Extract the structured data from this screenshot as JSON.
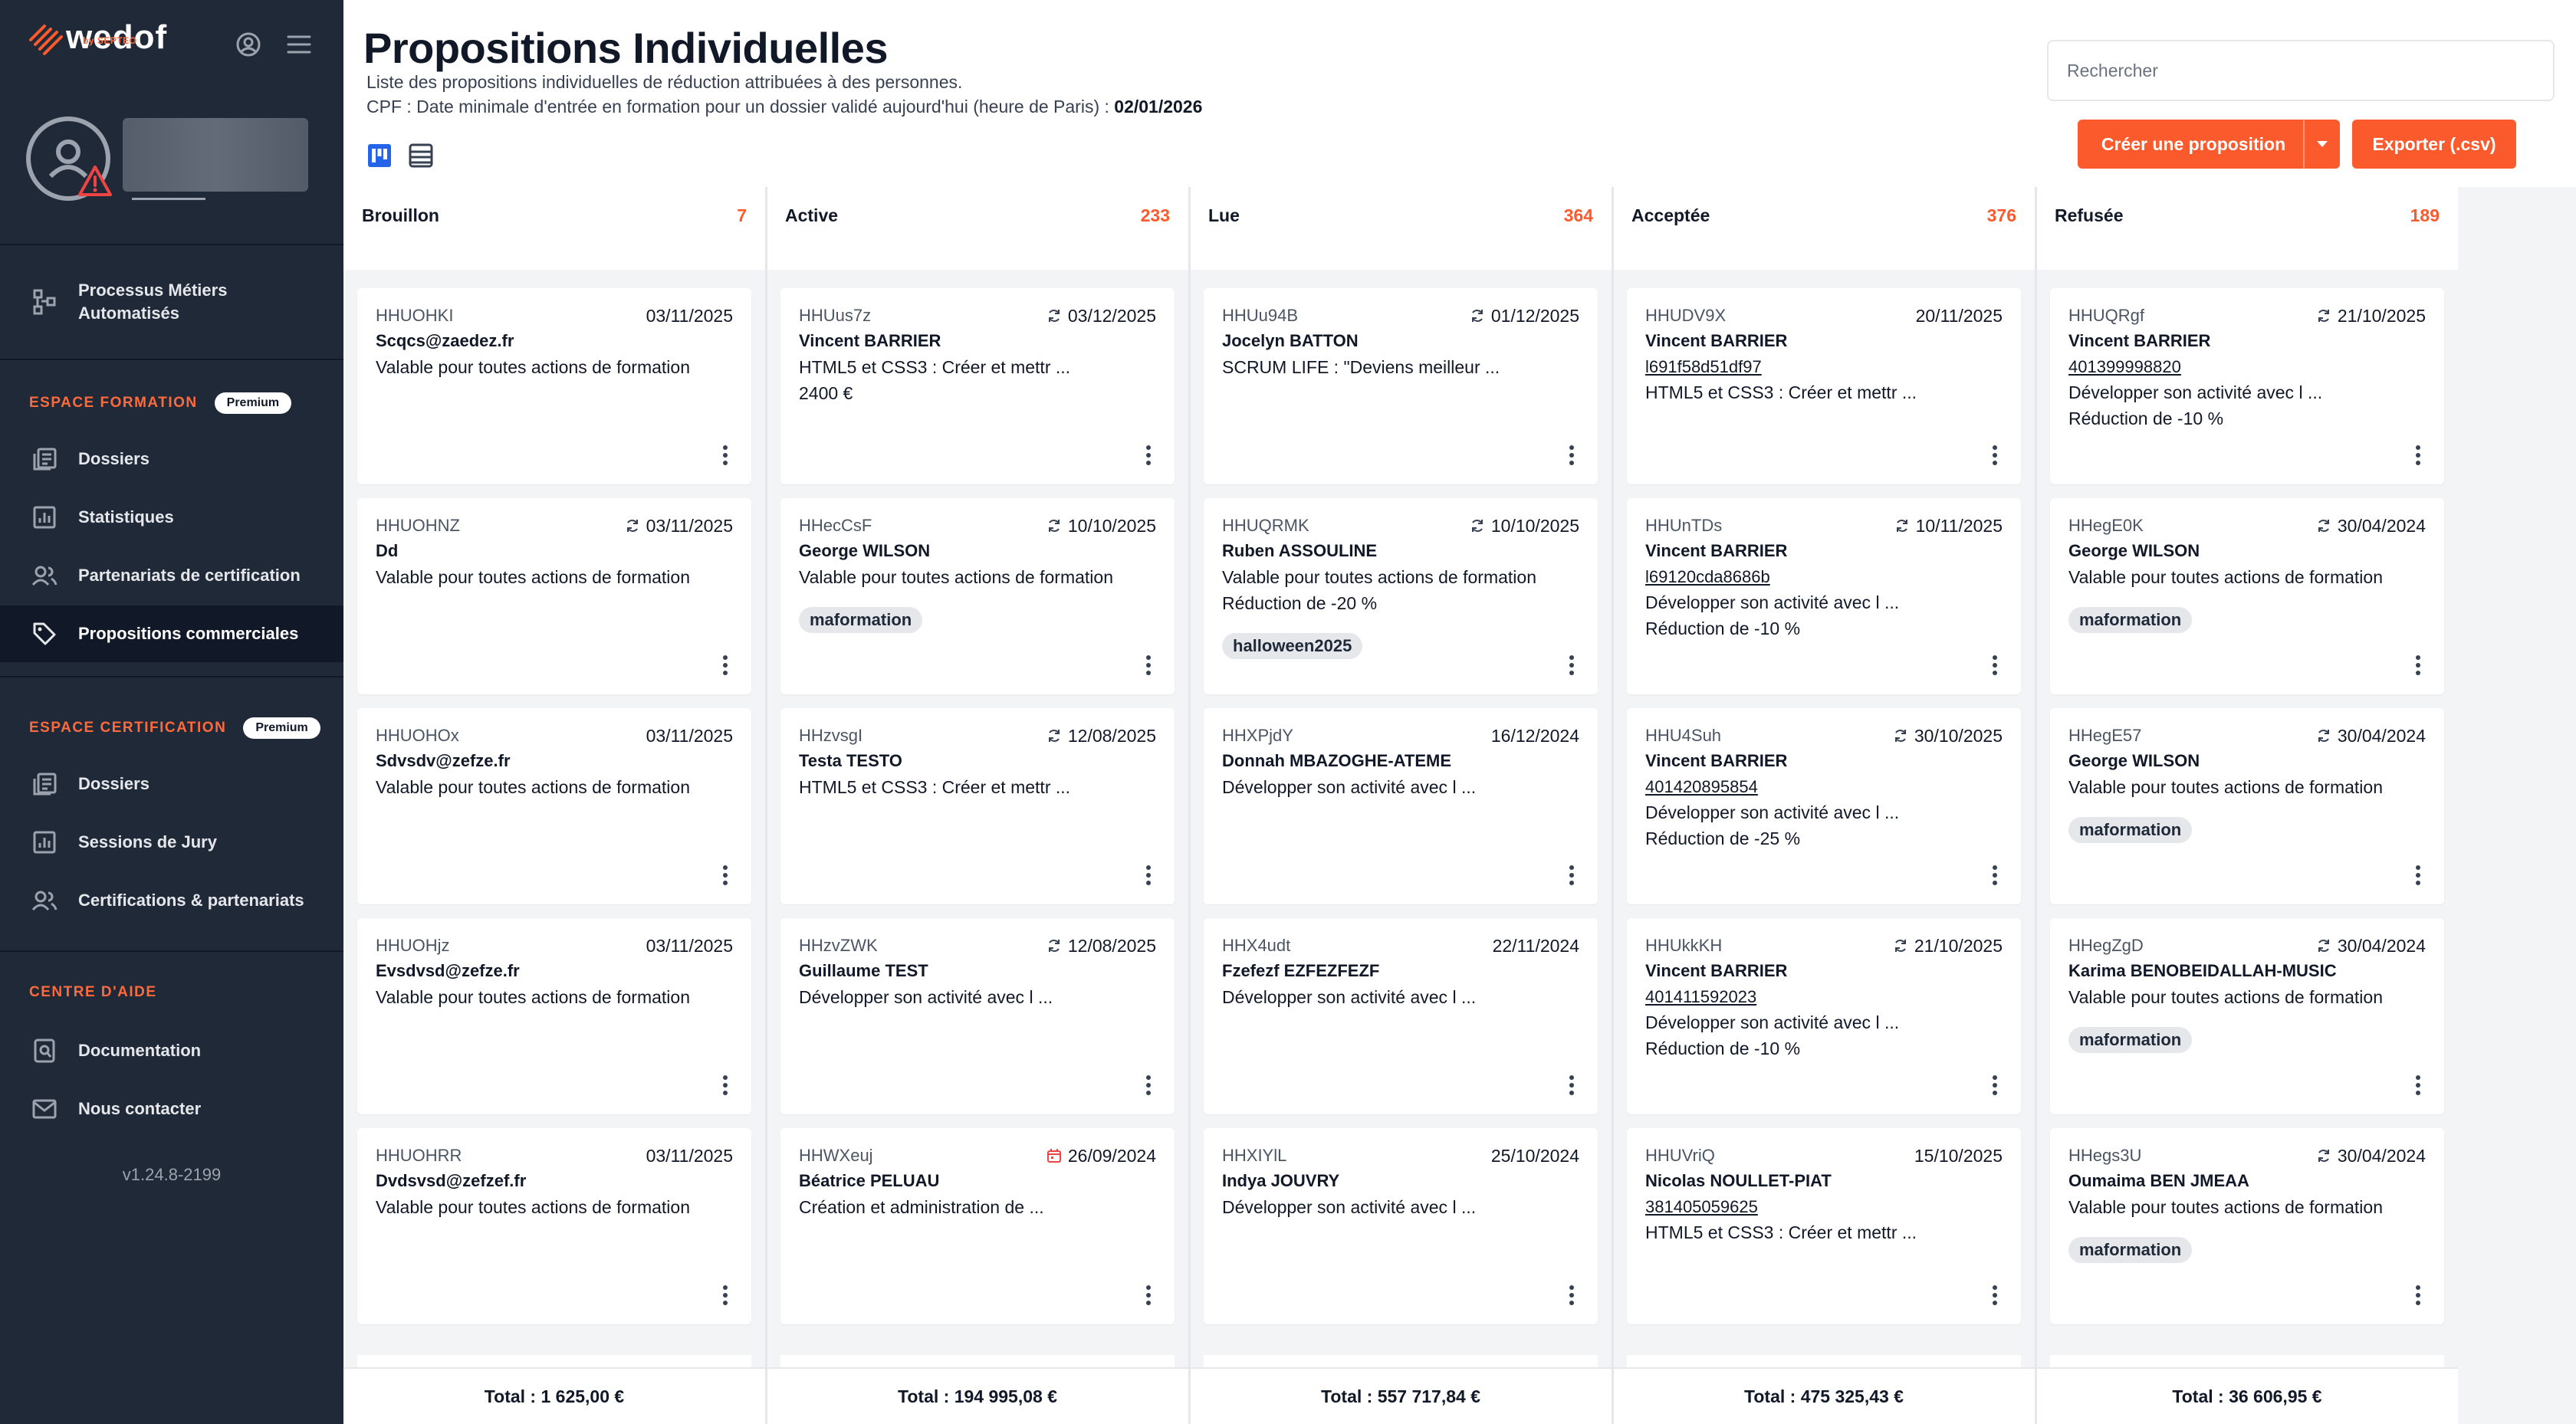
{
  "brand": {
    "name": "wedof",
    "sub": "by SEPTEO"
  },
  "sidebar": {
    "items_main": [
      {
        "label": "Processus Métiers Automatisés",
        "icon": "workflow-icon"
      }
    ],
    "formation": {
      "title": "ESPACE FORMATION",
      "badge": "Premium",
      "items": [
        {
          "label": "Dossiers",
          "icon": "folder-icon"
        },
        {
          "label": "Statistiques",
          "icon": "chart-icon"
        },
        {
          "label": "Partenariats de certification",
          "icon": "users-icon"
        },
        {
          "label": "Propositions commerciales",
          "icon": "tag-icon"
        }
      ]
    },
    "certification": {
      "title": "ESPACE CERTIFICATION",
      "badge": "Premium",
      "items": [
        {
          "label": "Dossiers",
          "icon": "folder-icon"
        },
        {
          "label": "Sessions de Jury",
          "icon": "chart-icon"
        },
        {
          "label": "Certifications & partenariats",
          "icon": "users-icon"
        }
      ]
    },
    "help": {
      "title": "CENTRE D'AIDE",
      "items": [
        {
          "label": "Documentation",
          "icon": "doc-icon"
        },
        {
          "label": "Nous contacter",
          "icon": "mail-icon"
        }
      ]
    },
    "version": "v1.24.8-2199"
  },
  "header": {
    "title": "Propositions Individuelles",
    "subtitle": "Liste des propositions individuelles de réduction attribuées à des personnes.",
    "cpf_prefix": "CPF : Date minimale d'entrée en formation pour un dossier validé aujourd'hui (heure de Paris) :",
    "cpf_date": "02/01/2026",
    "search_placeholder": "Rechercher",
    "create_label": "Créer une proposition",
    "export_label": "Exporter (.csv)"
  },
  "colors": {
    "accent": "#fb5a2c",
    "sidebar": "#1f2937"
  },
  "columns": [
    {
      "name": "Brouillon",
      "count": "7",
      "total": "Total : 1 625,00 €",
      "cards": [
        {
          "ref": "HHUOHKI",
          "date": "03/11/2025",
          "name": "Scqcs@zaedez.fr",
          "lines": [
            "Valable pour toutes actions de formation"
          ]
        },
        {
          "ref": "HHUOHNZ",
          "date": "03/11/2025",
          "icon": "sync",
          "name": "Dd",
          "lines": [
            "Valable pour toutes actions de formation"
          ]
        },
        {
          "ref": "HHUOHOx",
          "date": "03/11/2025",
          "name": "Sdvsdv@zefze.fr",
          "lines": [
            "Valable pour toutes actions de formation"
          ]
        },
        {
          "ref": "HHUOHjz",
          "date": "03/11/2025",
          "name": "Evsdvsd@zefze.fr",
          "lines": [
            "Valable pour toutes actions de formation"
          ]
        },
        {
          "ref": "HHUOHRR",
          "date": "03/11/2025",
          "name": "Dvdsvsd@zefzef.fr",
          "lines": [
            "Valable pour toutes actions de formation"
          ]
        }
      ]
    },
    {
      "name": "Active",
      "count": "233",
      "total": "Total : 194 995,08 €",
      "cards": [
        {
          "ref": "HHUus7z",
          "date": "03/12/2025",
          "icon": "sync",
          "name": "Vincent BARRIER",
          "lines": [
            "HTML5 et CSS3 : Créer et mettr ...",
            "2400 €"
          ]
        },
        {
          "ref": "HHecCsF",
          "date": "10/10/2025",
          "icon": "sync",
          "name": "George WILSON",
          "lines": [
            "Valable pour toutes actions de formation"
          ],
          "tag": "maformation"
        },
        {
          "ref": "HHzvsgI",
          "date": "12/08/2025",
          "icon": "sync",
          "name": "Testa TESTO",
          "lines": [
            "HTML5 et CSS3 : Créer et mettr ..."
          ]
        },
        {
          "ref": "HHzvZWK",
          "date": "12/08/2025",
          "icon": "sync",
          "name": "Guillaume TEST",
          "lines": [
            "Développer son activité avec l ..."
          ]
        },
        {
          "ref": "HHWXeuj",
          "date": "26/09/2024",
          "icon": "calendar",
          "name": "Béatrice PELUAU",
          "lines": [
            "Création et administration de ..."
          ]
        }
      ]
    },
    {
      "name": "Lue",
      "count": "364",
      "total": "Total : 557 717,84 €",
      "cards": [
        {
          "ref": "HHUu94B",
          "date": "01/12/2025",
          "icon": "sync",
          "name": "Jocelyn BATTON",
          "lines": [
            "SCRUM LIFE : \"Deviens meilleur ..."
          ]
        },
        {
          "ref": "HHUQRMK",
          "date": "10/10/2025",
          "icon": "sync",
          "name": "Ruben ASSOULINE",
          "lines": [
            "Valable pour toutes actions de formation",
            "Réduction de -20 %"
          ],
          "tag": "halloween2025"
        },
        {
          "ref": "HHXPjdY",
          "date": "16/12/2024",
          "name": "Donnah MBAZOGHE-ATEME",
          "lines": [
            "Développer son activité avec l ..."
          ]
        },
        {
          "ref": "HHX4udt",
          "date": "22/11/2024",
          "name": "Fzefezf EZFEZFEZF",
          "lines": [
            "Développer son activité avec l ..."
          ]
        },
        {
          "ref": "HHXIYlL",
          "date": "25/10/2024",
          "name": "Indya JOUVRY",
          "lines": [
            "Développer son activité avec l ..."
          ]
        }
      ]
    },
    {
      "name": "Acceptée",
      "count": "376",
      "total": "Total : 475 325,43 €",
      "cards": [
        {
          "ref": "HHUDV9X",
          "date": "20/11/2025",
          "name": "Vincent BARRIER",
          "link": "l691f58d51df97",
          "lines": [
            "HTML5 et CSS3 : Créer et mettr ..."
          ]
        },
        {
          "ref": "HHUnTDs",
          "date": "10/11/2025",
          "icon": "sync",
          "name": "Vincent BARRIER",
          "link": "l69120cda8686b",
          "lines": [
            "Développer son activité avec l ...",
            "Réduction de -10 %"
          ]
        },
        {
          "ref": "HHU4Suh",
          "date": "30/10/2025",
          "icon": "sync",
          "name": "Vincent BARRIER",
          "link": "401420895854",
          "lines": [
            "Développer son activité avec l ...",
            "Réduction de -25 %"
          ]
        },
        {
          "ref": "HHUkkKH",
          "date": "21/10/2025",
          "icon": "sync",
          "name": "Vincent BARRIER",
          "link": "401411592023",
          "lines": [
            "Développer son activité avec l ...",
            "Réduction de -10 %"
          ]
        },
        {
          "ref": "HHUVriQ",
          "date": "15/10/2025",
          "name": "Nicolas NOULLET-PIAT",
          "link": "381405059625",
          "lines": [
            "HTML5 et CSS3 : Créer et mettr ..."
          ]
        }
      ]
    },
    {
      "name": "Refusée",
      "count": "189",
      "total": "Total : 36 606,95 €",
      "cards": [
        {
          "ref": "HHUQRgf",
          "date": "21/10/2025",
          "icon": "sync",
          "name": "Vincent BARRIER",
          "link": "401399998820",
          "lines": [
            "Développer son activité avec l ...",
            "Réduction de -10 %"
          ]
        },
        {
          "ref": "HHegE0K",
          "date": "30/04/2024",
          "icon": "sync",
          "name": "George WILSON",
          "lines": [
            "Valable pour toutes actions de formation"
          ],
          "tag": "maformation"
        },
        {
          "ref": "HHegE57",
          "date": "30/04/2024",
          "icon": "sync",
          "name": "George WILSON",
          "lines": [
            "Valable pour toutes actions de formation"
          ],
          "tag": "maformation"
        },
        {
          "ref": "HHegZgD",
          "date": "30/04/2024",
          "icon": "sync",
          "name": "Karima BENOBEIDALLAH-MUSIC",
          "lines": [
            "Valable pour toutes actions de formation"
          ],
          "tag": "maformation"
        },
        {
          "ref": "HHegs3U",
          "date": "30/04/2024",
          "icon": "sync",
          "name": "Oumaima BEN JMEAA",
          "lines": [
            "Valable pour toutes actions de formation"
          ],
          "tag": "maformation"
        }
      ]
    }
  ]
}
